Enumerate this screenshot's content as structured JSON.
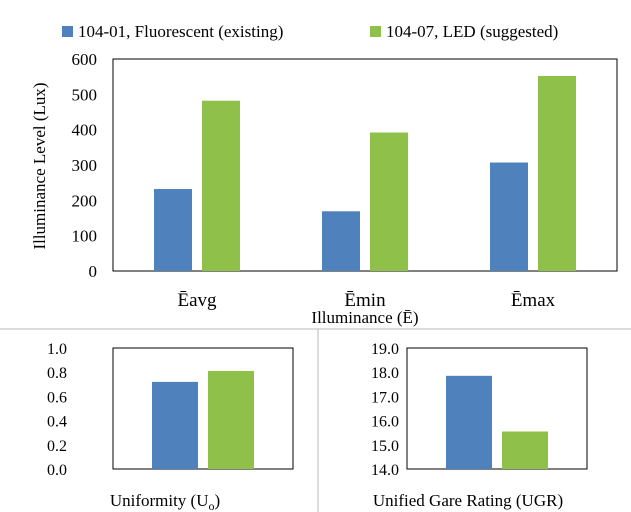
{
  "legend": {
    "items": [
      {
        "label": "104-01, Fluorescent (existing)",
        "color": "#4f81bd"
      },
      {
        "label": "104-07, LED (suggested)",
        "color": "#8ec04a"
      }
    ]
  },
  "chart_data": [
    {
      "type": "bar",
      "categories": [
        "Ēavg",
        "Ēmin",
        "Ēmax"
      ],
      "series": [
        {
          "name": "104-01, Fluorescent (existing)",
          "values": [
            232,
            169,
            307
          ]
        },
        {
          "name": "104-07, LED (suggested)",
          "values": [
            482,
            392,
            552
          ]
        }
      ],
      "xlabel": "Illuminance (Ē)",
      "ylabel": "Illuminance Level (Lux)",
      "ylim": [
        0,
        600
      ],
      "yticks": [
        "0",
        "100",
        "200",
        "300",
        "400",
        "500",
        "600"
      ],
      "legend": "top",
      "grid": false
    },
    {
      "type": "bar",
      "categories": [
        ""
      ],
      "series": [
        {
          "name": "104-01, Fluorescent (existing)",
          "values": [
            0.72
          ]
        },
        {
          "name": "104-07, LED (suggested)",
          "values": [
            0.81
          ]
        }
      ],
      "xlabel": "Uniformity (U",
      "xlabel_sub": "o",
      "xlabel_end": ")",
      "ylim": [
        0,
        1.0
      ],
      "yticks": [
        "0.0",
        "0.2",
        "0.4",
        "0.6",
        "0.8",
        "1.0"
      ],
      "grid": false
    },
    {
      "type": "bar",
      "categories": [
        ""
      ],
      "series": [
        {
          "name": "104-01, Fluorescent (existing)",
          "values": [
            17.85
          ]
        },
        {
          "name": "104-07, LED (suggested)",
          "values": [
            15.55
          ]
        }
      ],
      "xlabel": "Unified Gare Rating (UGR)",
      "ylim": [
        14.0,
        19.0
      ],
      "yticks": [
        "14.0",
        "15.0",
        "16.0",
        "17.0",
        "18.0",
        "19.0"
      ],
      "grid": false
    }
  ]
}
